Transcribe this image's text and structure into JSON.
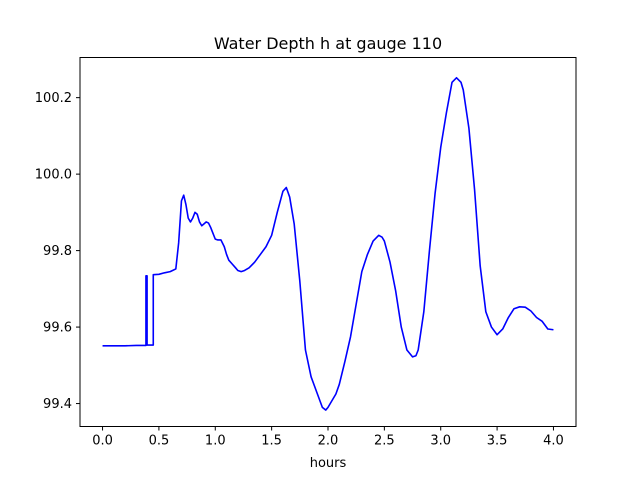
{
  "chart_data": {
    "type": "line",
    "title": "Water Depth h at gauge 110",
    "xlabel": "hours",
    "ylabel": "",
    "xlim": [
      -0.2,
      4.2
    ],
    "ylim": [
      99.34,
      100.305
    ],
    "xticks": [
      0.0,
      0.5,
      1.0,
      1.5,
      2.0,
      2.5,
      3.0,
      3.5,
      4.0
    ],
    "xtick_labels": [
      "0.0",
      "0.5",
      "1.0",
      "1.5",
      "2.0",
      "2.5",
      "3.0",
      "3.5",
      "4.0"
    ],
    "yticks": [
      99.4,
      99.6,
      99.8,
      100.0,
      100.2
    ],
    "ytick_labels": [
      "99.4",
      "99.6",
      "99.8",
      "100.0",
      "100.2"
    ],
    "grid": false,
    "series": [
      {
        "name": "",
        "color": "#0000ff",
        "x": [
          0.0,
          0.1,
          0.2,
          0.3,
          0.385,
          0.385,
          0.395,
          0.395,
          0.45,
          0.45,
          0.5,
          0.55,
          0.6,
          0.65,
          0.675,
          0.7,
          0.72,
          0.74,
          0.76,
          0.78,
          0.8,
          0.82,
          0.84,
          0.86,
          0.88,
          0.9,
          0.92,
          0.94,
          0.96,
          0.98,
          1.0,
          1.02,
          1.05,
          1.08,
          1.1,
          1.12,
          1.15,
          1.18,
          1.2,
          1.23,
          1.26,
          1.3,
          1.35,
          1.4,
          1.45,
          1.5,
          1.55,
          1.6,
          1.63,
          1.66,
          1.7,
          1.75,
          1.8,
          1.85,
          1.9,
          1.95,
          1.98,
          2.0,
          2.03,
          2.07,
          2.1,
          2.15,
          2.2,
          2.25,
          2.3,
          2.35,
          2.4,
          2.45,
          2.48,
          2.5,
          2.55,
          2.6,
          2.65,
          2.7,
          2.75,
          2.78,
          2.8,
          2.85,
          2.9,
          2.95,
          3.0,
          3.05,
          3.1,
          3.14,
          3.18,
          3.2,
          3.25,
          3.3,
          3.35,
          3.4,
          3.45,
          3.5,
          3.55,
          3.6,
          3.65,
          3.7,
          3.75,
          3.8,
          3.85,
          3.9,
          3.95,
          4.0
        ],
        "y": [
          99.551,
          99.551,
          99.551,
          99.552,
          99.552,
          99.734,
          99.734,
          99.553,
          99.553,
          99.737,
          99.738,
          99.742,
          99.745,
          99.752,
          99.82,
          99.93,
          99.945,
          99.92,
          99.885,
          99.875,
          99.885,
          99.9,
          99.895,
          99.875,
          99.865,
          99.87,
          99.875,
          99.872,
          99.86,
          99.845,
          99.83,
          99.828,
          99.828,
          99.81,
          99.79,
          99.775,
          99.765,
          99.755,
          99.748,
          99.745,
          99.748,
          99.755,
          99.77,
          99.79,
          99.81,
          99.84,
          99.9,
          99.955,
          99.965,
          99.94,
          99.87,
          99.72,
          99.54,
          99.47,
          99.43,
          99.39,
          99.383,
          99.39,
          99.405,
          99.425,
          99.45,
          99.51,
          99.575,
          99.66,
          99.745,
          99.79,
          99.825,
          99.84,
          99.835,
          99.825,
          99.77,
          99.695,
          99.6,
          99.54,
          99.522,
          99.525,
          99.54,
          99.64,
          99.8,
          99.95,
          100.07,
          100.16,
          100.24,
          100.252,
          100.24,
          100.22,
          100.12,
          99.96,
          99.76,
          99.64,
          99.6,
          99.58,
          99.595,
          99.625,
          99.648,
          99.653,
          99.652,
          99.642,
          99.625,
          99.615,
          99.595,
          99.593
        ]
      }
    ]
  }
}
